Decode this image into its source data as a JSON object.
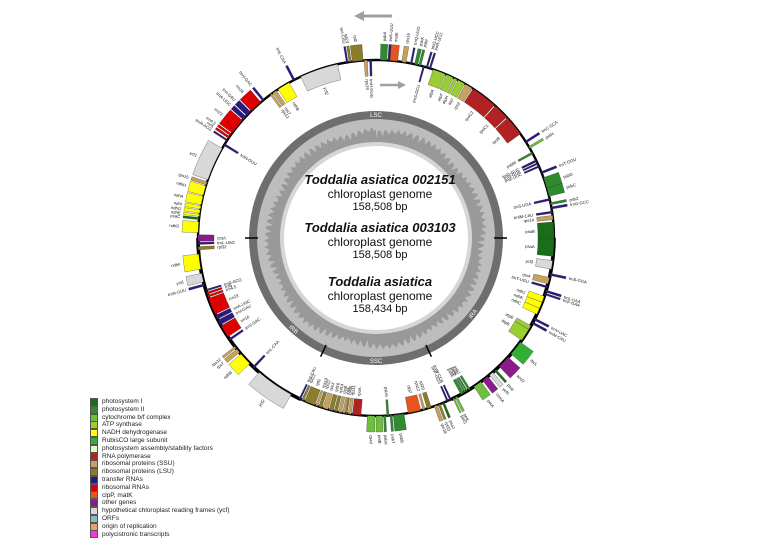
{
  "genomes": [
    {
      "title": "Toddalia asiatica 002151",
      "subtitle": "chloroplast genome",
      "size": "158,508 bp"
    },
    {
      "title": "Toddalia asiatica 003103",
      "subtitle": "chloroplast genome",
      "size": "158,508 bp"
    },
    {
      "title": "Toddalia asiatica",
      "subtitle": "chloroplast genome",
      "size": "158,434 bp"
    }
  ],
  "regions": [
    "LSC",
    "IRB",
    "SSC",
    "IRA"
  ],
  "legend": [
    {
      "label": "photosystem I",
      "color": "#1a6e1a"
    },
    {
      "label": "photosystem II",
      "color": "#2e8b2e"
    },
    {
      "label": "cytochrome b/f complex",
      "color": "#6fbf3f"
    },
    {
      "label": "ATP synthase",
      "color": "#9acd32"
    },
    {
      "label": "NADH dehydrogenase",
      "color": "#ffff00"
    },
    {
      "label": "RubisCO large subunit",
      "color": "#33b033"
    },
    {
      "label": "photosystem assembly/stability factors",
      "color": "#e8f5c8"
    },
    {
      "label": "RNA polymerase",
      "color": "#b22222"
    },
    {
      "label": "ribosomal proteins (SSU)",
      "color": "#c8a25a"
    },
    {
      "label": "ribosomal proteins (LSU)",
      "color": "#8b7d2a"
    },
    {
      "label": "transfer RNAs",
      "color": "#2a1a80"
    },
    {
      "label": "ribosomal RNAs",
      "color": "#dd0000"
    },
    {
      "label": "clpP, matK",
      "color": "#e8541a"
    },
    {
      "label": "other genes",
      "color": "#8b1a8b"
    },
    {
      "label": "hypothetical chloroplast reading frames (ycf)",
      "color": "#d8d8d8"
    },
    {
      "label": "ORFs",
      "color": "#7fbfbf"
    },
    {
      "label": "origin of replication",
      "color": "#e8a070"
    },
    {
      "label": "polycistronic transcripts",
      "color": "#ff33cc"
    }
  ],
  "genes": [
    {
      "name": "psbA",
      "start": 2,
      "end": 5,
      "out": true,
      "color": "#2e8b2e"
    },
    {
      "name": "trnK-UUU",
      "start": 5.5,
      "end": 6.5,
      "out": true,
      "color": "#2a1a80"
    },
    {
      "name": "matK",
      "start": 6.5,
      "end": 10,
      "out": true,
      "color": "#e8541a"
    },
    {
      "name": "rps16",
      "start": 12,
      "end": 14,
      "out": true,
      "color": "#c8a25a"
    },
    {
      "name": "trnQ-UUG",
      "start": 16,
      "end": 16.8,
      "out": true,
      "color": "#2a1a80"
    },
    {
      "name": "psbK",
      "start": 18,
      "end": 19.5,
      "out": true,
      "color": "#2e8b2e"
    },
    {
      "name": "psbI",
      "start": 20,
      "end": 21,
      "out": true,
      "color": "#2e8b2e"
    },
    {
      "name": "trnS-GCU",
      "start": 22,
      "end": 22.8,
      "out": false,
      "color": "#2a1a80"
    },
    {
      "name": "trnG-UCC",
      "start": 23.5,
      "end": 24.3,
      "out": true,
      "color": "#2a1a80"
    },
    {
      "name": "trnR-UCU",
      "start": 25,
      "end": 25.8,
      "out": true,
      "color": "#2a1a80"
    },
    {
      "name": "atpA",
      "start": 27,
      "end": 33,
      "out": false,
      "color": "#9acd32"
    },
    {
      "name": "atpF",
      "start": 33.5,
      "end": 37,
      "out": false,
      "color": "#9acd32"
    },
    {
      "name": "atpH",
      "start": 37.5,
      "end": 39,
      "out": false,
      "color": "#9acd32"
    },
    {
      "name": "atpI",
      "start": 39.5,
      "end": 43,
      "out": false,
      "color": "#9acd32"
    },
    {
      "name": "rps2",
      "start": 43.5,
      "end": 47,
      "out": false,
      "color": "#c8a25a"
    },
    {
      "name": "rpoC2",
      "start": 47.5,
      "end": 60,
      "out": false,
      "color": "#b22222"
    },
    {
      "name": "rpoC1",
      "start": 60.5,
      "end": 68,
      "out": false,
      "color": "#b22222"
    },
    {
      "name": "rpoB",
      "start": 68.5,
      "end": 78,
      "out": false,
      "color": "#b22222"
    },
    {
      "name": "trnC-GCA",
      "start": 82,
      "end": 83,
      "out": true,
      "color": "#2a1a80"
    },
    {
      "name": "petN",
      "start": 85,
      "end": 86,
      "out": true,
      "color": "#6fbf3f"
    },
    {
      "name": "psbM",
      "start": 88,
      "end": 89,
      "out": false,
      "color": "#2e8b2e"
    },
    {
      "name": "trnD-GUC",
      "start": 92,
      "end": 93,
      "out": false,
      "color": "#2a1a80"
    },
    {
      "name": "trnY-GUA",
      "start": 93.5,
      "end": 94.3,
      "out": false,
      "color": "#2a1a80"
    },
    {
      "name": "trnE-UUC",
      "start": 95,
      "end": 95.8,
      "out": false,
      "color": "#2a1a80"
    },
    {
      "name": "trnT-GGU",
      "start": 98,
      "end": 99,
      "out": true,
      "color": "#2a1a80"
    },
    {
      "name": "psbD",
      "start": 101,
      "end": 106,
      "out": true,
      "color": "#2e8b2e"
    },
    {
      "name": "psbC",
      "start": 106,
      "end": 110,
      "out": true,
      "color": "#2e8b2e"
    },
    {
      "name": "trnS-UGA",
      "start": 111,
      "end": 112,
      "out": false,
      "color": "#2a1a80"
    },
    {
      "name": "psbZ",
      "start": 113,
      "end": 114,
      "out": true,
      "color": "#2e8b2e"
    },
    {
      "name": "trnG-GCC",
      "start": 115,
      "end": 116,
      "out": true,
      "color": "#2a1a80"
    },
    {
      "name": "trnfM-CAU",
      "start": 117,
      "end": 118,
      "out": false,
      "color": "#2a1a80"
    },
    {
      "name": "rps14",
      "start": 119,
      "end": 121,
      "out": false,
      "color": "#c8a25a"
    },
    {
      "name": "psaB",
      "start": 122,
      "end": 130,
      "out": false,
      "color": "#1a6e1a"
    },
    {
      "name": "psaA",
      "start": 130,
      "end": 138,
      "out": false,
      "color": "#1a6e1a"
    },
    {
      "name": "ycf3",
      "start": 140,
      "end": 144,
      "out": false,
      "color": "#d8d8d8"
    },
    {
      "name": "trnS-GGA",
      "start": 146,
      "end": 147,
      "out": true,
      "color": "#2a1a80"
    },
    {
      "name": "rps4",
      "start": 148,
      "end": 151,
      "out": false,
      "color": "#c8a25a"
    },
    {
      "name": "trnT-UGU",
      "start": 152,
      "end": 153,
      "out": false,
      "color": "#2a1a80"
    },
    {
      "name": "trnL-UAA",
      "start": 154,
      "end": 155,
      "out": true,
      "color": "#2a1a80"
    },
    {
      "name": "trnF-GAA",
      "start": 155.5,
      "end": 156.3,
      "out": true,
      "color": "#2a1a80"
    },
    {
      "name": "ndhJ",
      "start": 157,
      "end": 160,
      "out": false,
      "color": "#ffff00"
    },
    {
      "name": "ndhK",
      "start": 160,
      "end": 163,
      "out": false,
      "color": "#ffff00"
    },
    {
      "name": "ndhC",
      "start": 163,
      "end": 166,
      "out": false,
      "color": "#ffff00"
    },
    {
      "name": "trnV-UAC",
      "start": 168,
      "end": 169,
      "out": true,
      "color": "#2a1a80"
    },
    {
      "name": "trnM-CAU",
      "start": 170,
      "end": 171,
      "out": true,
      "color": "#2a1a80"
    },
    {
      "name": "atpE",
      "start": 172,
      "end": 174,
      "out": false,
      "color": "#9acd32"
    },
    {
      "name": "atpB",
      "start": 174,
      "end": 180,
      "out": false,
      "color": "#9acd32"
    },
    {
      "name": "rbcL",
      "start": 181,
      "end": 188,
      "out": true,
      "color": "#33b033"
    },
    {
      "name": "accD",
      "start": 190,
      "end": 196,
      "out": true,
      "color": "#8b1a8b"
    },
    {
      "name": "psaI",
      "start": 198,
      "end": 199,
      "out": true,
      "color": "#1a6e1a"
    },
    {
      "name": "ycf4",
      "start": 200,
      "end": 202,
      "out": true,
      "color": "#d8d8d8"
    },
    {
      "name": "cemA",
      "start": 203,
      "end": 206,
      "out": true,
      "color": "#8b1a8b"
    },
    {
      "name": "petA",
      "start": 207,
      "end": 211,
      "out": true,
      "color": "#6fbf3f"
    },
    {
      "name": "psbJ",
      "start": 213,
      "end": 214,
      "out": false,
      "color": "#2e8b2e"
    },
    {
      "name": "psbL",
      "start": 214.5,
      "end": 215.2,
      "out": false,
      "color": "#2e8b2e"
    },
    {
      "name": "psbF",
      "start": 215.5,
      "end": 216.2,
      "out": false,
      "color": "#2e8b2e"
    },
    {
      "name": "psbE",
      "start": 216.5,
      "end": 218,
      "out": false,
      "color": "#2e8b2e"
    },
    {
      "name": "petL",
      "start": 220,
      "end": 221,
      "out": true,
      "color": "#6fbf3f"
    },
    {
      "name": "petG",
      "start": 221.5,
      "end": 222.2,
      "out": true,
      "color": "#6fbf3f"
    },
    {
      "name": "trnW-CCA",
      "start": 223,
      "end": 223.8,
      "out": false,
      "color": "#2a1a80"
    },
    {
      "name": "trnP-UGG",
      "start": 224.5,
      "end": 225.3,
      "out": false,
      "color": "#2a1a80"
    },
    {
      "name": "psaJ",
      "start": 226.5,
      "end": 227.5,
      "out": true,
      "color": "#1a6e1a"
    },
    {
      "name": "rpl33",
      "start": 228.5,
      "end": 229.5,
      "out": true,
      "color": "#8b7d2a"
    },
    {
      "name": "rps18",
      "start": 230,
      "end": 231.5,
      "out": true,
      "color": "#c8a25a"
    },
    {
      "name": "rpl20",
      "start": 233,
      "end": 235,
      "out": false,
      "color": "#8b7d2a"
    },
    {
      "name": "rps12",
      "start": 236,
      "end": 237,
      "out": false,
      "color": "#c8a25a"
    },
    {
      "name": "clpP",
      "start": 238,
      "end": 244,
      "out": false,
      "color": "#e8541a"
    },
    {
      "name": "psbB",
      "start": 246,
      "end": 251,
      "out": true,
      "color": "#2e8b2e"
    },
    {
      "name": "psbT",
      "start": 251.5,
      "end": 252.5,
      "out": true,
      "color": "#2e8b2e"
    },
    {
      "name": "psbN",
      "start": 253,
      "end": 254,
      "out": false,
      "color": "#2e8b2e"
    },
    {
      "name": "psbH",
      "start": 254.5,
      "end": 255.5,
      "out": true,
      "color": "#2e8b2e"
    },
    {
      "name": "petB",
      "start": 256,
      "end": 259,
      "out": true,
      "color": "#6fbf3f"
    },
    {
      "name": "petD",
      "start": 259.5,
      "end": 263,
      "out": true,
      "color": "#6fbf3f"
    },
    {
      "name": "rpoA",
      "start": 266,
      "end": 270,
      "out": false,
      "color": "#b22222"
    },
    {
      "name": "rps11",
      "start": 270.5,
      "end": 272,
      "out": false,
      "color": "#c8a25a"
    },
    {
      "name": "rpl36",
      "start": 272.5,
      "end": 273.2,
      "out": false,
      "color": "#8b7d2a"
    },
    {
      "name": "infA",
      "start": 273.5,
      "end": 274.5,
      "out": false,
      "color": "#c8a25a"
    },
    {
      "name": "rps8",
      "start": 275,
      "end": 276.5,
      "out": false,
      "color": "#c8a25a"
    },
    {
      "name": "rpl14",
      "start": 277,
      "end": 278.5,
      "out": false,
      "color": "#8b7d2a"
    },
    {
      "name": "rpl16",
      "start": 279,
      "end": 281,
      "out": false,
      "color": "#8b7d2a"
    },
    {
      "name": "rps3",
      "start": 281.5,
      "end": 284,
      "out": false,
      "color": "#c8a25a"
    },
    {
      "name": "rpl22",
      "start": 284.5,
      "end": 286,
      "out": false,
      "color": "#8b7d2a"
    },
    {
      "name": "rps19",
      "start": 286.5,
      "end": 287.5,
      "out": false,
      "color": "#c8a25a"
    },
    {
      "name": "rpl2",
      "start": 288,
      "end": 293,
      "out": false,
      "color": "#8b7d2a"
    },
    {
      "name": "rpl23",
      "start": 293.5,
      "end": 294.5,
      "out": false,
      "color": "#8b7d2a"
    },
    {
      "name": "trnI-CAU",
      "start": 295,
      "end": 295.8,
      "out": false,
      "color": "#2a1a80"
    },
    {
      "name": "ycf2",
      "start": 300,
      "end": 318,
      "out": true,
      "color": "#d8d8d8"
    },
    {
      "name": "trnL-CAA",
      "start": 321,
      "end": 322,
      "out": false,
      "color": "#2a1a80"
    },
    {
      "name": "ndhB",
      "start": 324,
      "end": 330,
      "out": true,
      "color": "#ffff00"
    },
    {
      "name": "rps7",
      "start": 331,
      "end": 333,
      "out": true,
      "color": "#c8a25a"
    },
    {
      "name": "rps12",
      "start": 333.5,
      "end": 334.5,
      "out": true,
      "color": "#c8a25a"
    },
    {
      "name": "trnV-GAC",
      "start": 338,
      "end": 339,
      "out": false,
      "color": "#2a1a80"
    },
    {
      "name": "rrn16",
      "start": 340,
      "end": 346,
      "out": false,
      "color": "#dd0000"
    },
    {
      "name": "trnI-GAU",
      "start": 346.5,
      "end": 349,
      "out": false,
      "color": "#2a1a80"
    },
    {
      "name": "trnA-UGC",
      "start": 349.5,
      "end": 351.5,
      "out": false,
      "color": "#2a1a80"
    },
    {
      "name": "rrn23",
      "start": 352,
      "end": 360,
      "out": false,
      "color": "#dd0000"
    },
    {
      "name": "rrn4.5",
      "start": 360.5,
      "end": 361.5,
      "out": false,
      "color": "#dd0000"
    },
    {
      "name": "rrn5",
      "start": 362,
      "end": 363,
      "out": false,
      "color": "#dd0000"
    },
    {
      "name": "trnR-ACG",
      "start": 363.5,
      "end": 364.3,
      "out": false,
      "color": "#2a1a80"
    },
    {
      "name": "trnN-GUU",
      "start": 366,
      "end": 367,
      "out": true,
      "color": "#2a1a80"
    },
    {
      "name": "ycf1",
      "start": 368,
      "end": 372,
      "out": true,
      "color": "#d8d8d8"
    },
    {
      "name": "ndhF",
      "start": 374,
      "end": 381,
      "out": true,
      "color": "#ffff00"
    },
    {
      "name": "rpl32",
      "start": 383,
      "end": 384.5,
      "out": false,
      "color": "#8b7d2a"
    },
    {
      "name": "trnL-UAG",
      "start": 385.5,
      "end": 386.5,
      "out": false,
      "color": "#2a1a80"
    },
    {
      "name": "ccsA",
      "start": 387,
      "end": 390,
      "out": false,
      "color": "#8b1a8b"
    },
    {
      "name": "ndhD",
      "start": 391,
      "end": 396,
      "out": true,
      "color": "#ffff00"
    },
    {
      "name": "psaC",
      "start": 397,
      "end": 398,
      "out": true,
      "color": "#1a6e1a"
    },
    {
      "name": "ndhE",
      "start": 398.5,
      "end": 399.5,
      "out": true,
      "color": "#ffff00"
    },
    {
      "name": "ndhG",
      "start": 400,
      "end": 401.5,
      "out": true,
      "color": "#ffff00"
    },
    {
      "name": "ndhI",
      "start": 402,
      "end": 403.5,
      "out": true,
      "color": "#ffff00"
    },
    {
      "name": "ndhA",
      "start": 404,
      "end": 408,
      "out": true,
      "color": "#ffff00"
    },
    {
      "name": "ndhH",
      "start": 408.5,
      "end": 413,
      "out": true,
      "color": "#ffff00"
    },
    {
      "name": "rps15",
      "start": 413.5,
      "end": 415,
      "out": true,
      "color": "#c8a25a"
    },
    {
      "name": "ycf1",
      "start": 416,
      "end": 432,
      "out": true,
      "color": "#d8d8d8"
    },
    {
      "name": "trnN-GUU",
      "start": 433.5,
      "end": 434.5,
      "out": false,
      "color": "#2a1a80"
    },
    {
      "name": "trnR-ACG",
      "start": 436,
      "end": 436.8,
      "out": true,
      "color": "#2a1a80"
    },
    {
      "name": "rrn5",
      "start": 437.5,
      "end": 438.5,
      "out": true,
      "color": "#dd0000"
    },
    {
      "name": "rrn4.5",
      "start": 439,
      "end": 440,
      "out": true,
      "color": "#dd0000"
    },
    {
      "name": "rrn23",
      "start": 440.5,
      "end": 448,
      "out": true,
      "color": "#dd0000"
    },
    {
      "name": "trnA-UGC",
      "start": 448.5,
      "end": 450.5,
      "out": true,
      "color": "#2a1a80"
    },
    {
      "name": "trnI-GAU",
      "start": 451,
      "end": 453.5,
      "out": true,
      "color": "#2a1a80"
    },
    {
      "name": "rrn16",
      "start": 454,
      "end": 460,
      "out": true,
      "color": "#dd0000"
    },
    {
      "name": "trnV-GAC",
      "start": 461,
      "end": 462,
      "out": true,
      "color": "#2a1a80"
    },
    {
      "name": "rps12",
      "start": 465.5,
      "end": 466.5,
      "out": false,
      "color": "#c8a25a"
    },
    {
      "name": "rps7",
      "start": 467,
      "end": 469,
      "out": false,
      "color": "#c8a25a"
    },
    {
      "name": "ndhB",
      "start": 470,
      "end": 476,
      "out": false,
      "color": "#ffff00"
    },
    {
      "name": "trnL-CAA",
      "start": 478,
      "end": 479,
      "out": true,
      "color": "#2a1a80"
    },
    {
      "name": "ycf2",
      "start": 482,
      "end": 500,
      "out": false,
      "color": "#d8d8d8"
    },
    {
      "name": "trnI-CAU",
      "start": 504.2,
      "end": 505,
      "out": true,
      "color": "#2a1a80"
    },
    {
      "name": "rpl23",
      "start": 505.5,
      "end": 506.5,
      "out": true,
      "color": "#8b7d2a"
    },
    {
      "name": "rpl2",
      "start": 507,
      "end": 512,
      "out": true,
      "color": "#8b7d2a"
    },
    {
      "name": "rps19",
      "start": 512.5,
      "end": 514,
      "out": false,
      "color": "#c8a25a"
    },
    {
      "name": "trnH-GUG",
      "start": 515,
      "end": 516,
      "out": false,
      "color": "#2a1a80"
    }
  ]
}
